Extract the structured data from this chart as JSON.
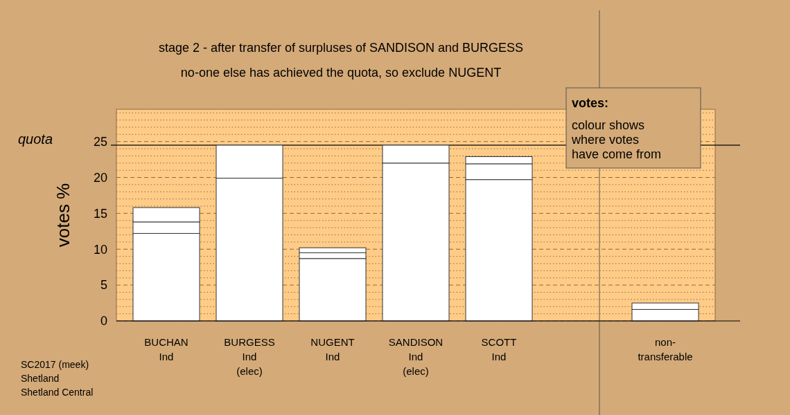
{
  "chart_data": {
    "type": "bar",
    "stacked": true,
    "title": "stage 2 - after transfer of surpluses of SANDISON and BURGESS",
    "subtitle": "no-one else has achieved the quota, so exclude NUGENT",
    "ylabel": "votes %",
    "categories": [
      "BUCHAN\nInd",
      "BURGESS\nInd\n(elec)",
      "NUGENT\nInd",
      "SANDISON\nInd\n(elec)",
      "SCOTT\nInd",
      null,
      "non-\ntransferable"
    ],
    "series": [
      {
        "color": "#ffffff",
        "values": [
          12.2,
          19.9,
          8.7,
          22.0,
          19.7,
          null,
          1.6
        ]
      },
      {
        "color": "#ffffff",
        "values": [
          1.6,
          4.6,
          0.8,
          2.5,
          2.2,
          null,
          0.9
        ]
      },
      {
        "color": "#ffffff",
        "values": [
          2.0,
          null,
          0.7,
          null,
          1.0,
          null,
          null
        ]
      }
    ],
    "ylim": [
      0,
      29.5
    ],
    "yticks": [
      0,
      {
        "value": 1,
        "label": null
      },
      {
        "value": 2,
        "label": null
      },
      {
        "value": 3,
        "label": null
      },
      {
        "value": 4,
        "label": null
      },
      5,
      {
        "value": 6,
        "label": null
      },
      {
        "value": 7,
        "label": null
      },
      {
        "value": 8,
        "label": null
      },
      {
        "value": 9,
        "label": null
      },
      10,
      {
        "value": 11,
        "label": null
      },
      {
        "value": 12,
        "label": null
      },
      {
        "value": 13,
        "label": null
      },
      {
        "value": 14,
        "label": null
      },
      15,
      {
        "value": 16,
        "label": null
      },
      {
        "value": 17,
        "label": null
      },
      {
        "value": 18,
        "label": null
      },
      {
        "value": 19,
        "label": null
      },
      20,
      {
        "value": 21,
        "label": null
      },
      {
        "value": 22,
        "label": null
      },
      {
        "value": 23,
        "label": null
      },
      {
        "value": 24,
        "label": null
      },
      25,
      {
        "value": 26,
        "label": null
      },
      {
        "value": 27,
        "label": null
      },
      {
        "value": 28,
        "label": null
      },
      {
        "value": 29,
        "label": null
      }
    ],
    "grid": "y",
    "ref_lines": [
      {
        "axis": "y",
        "value": 24.5,
        "label": "quota",
        "color": "#000000"
      }
    ],
    "annotations": [
      "votes:",
      "colour shows\nwhere votes\nhave come from",
      "SC2017 (meek)\nShetland\nShetland Central"
    ]
  }
}
